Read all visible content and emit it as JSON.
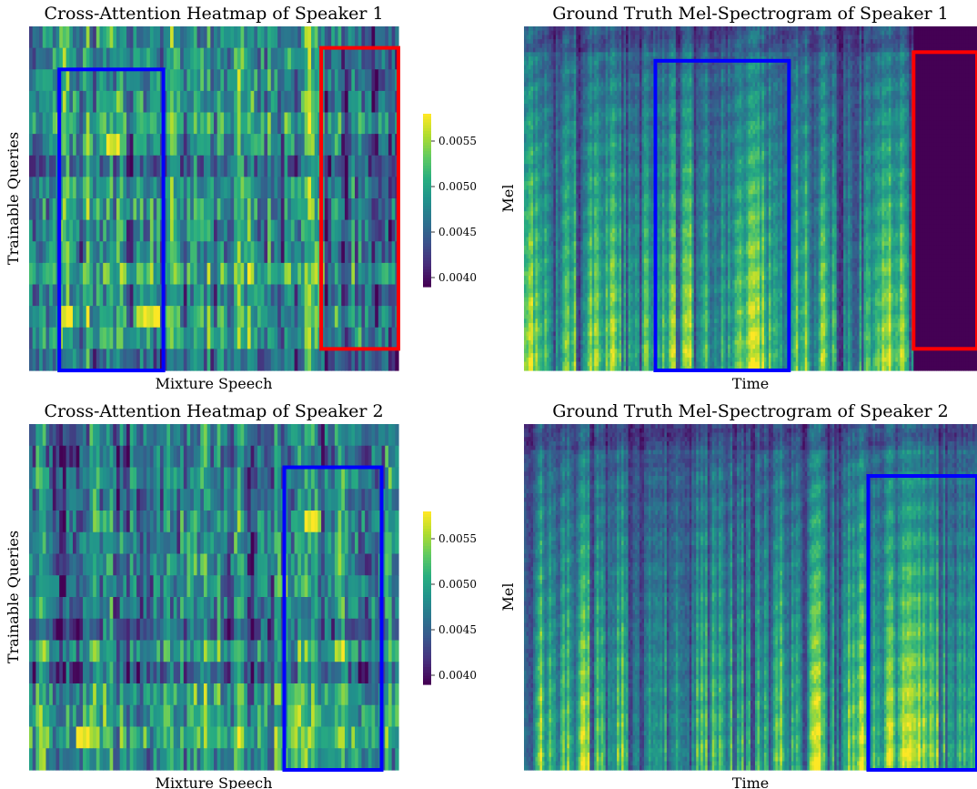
{
  "colormap": {
    "name": "viridis",
    "stops": [
      "#440154",
      "#472d7b",
      "#3b528b",
      "#2c728e",
      "#21918c",
      "#28ae80",
      "#5ec962",
      "#addc30",
      "#fde725"
    ]
  },
  "box_colors": {
    "blue": "#0000ff",
    "red": "#ff0000"
  },
  "chart_data": [
    {
      "type": "heatmap",
      "title": "Cross-Attention Heatmap of Speaker 1",
      "xlabel": "Mixture Speech",
      "ylabel": "Trainable Queries",
      "rows": 16,
      "cols": 110,
      "value_range": [
        0.0039,
        0.0058
      ],
      "colorbar": {
        "ticks": [
          0.004,
          0.0045,
          0.005,
          0.0055
        ],
        "tick_labels": [
          "0.0040",
          "0.0045",
          "0.0050",
          "0.0055"
        ]
      },
      "highlight_boxes": [
        {
          "color": "blue",
          "col_range": [
            9,
            40
          ],
          "row_range": [
            2,
            16
          ]
        },
        {
          "color": "red",
          "col_range": [
            87,
            110
          ],
          "row_range": [
            1,
            15
          ]
        }
      ]
    },
    {
      "type": "heatmap",
      "title": "Ground Truth Mel-Spectrogram of Speaker 1",
      "xlabel": "Time",
      "ylabel": "Mel",
      "rows": 80,
      "cols": 200,
      "silence_start_col": 172,
      "highlight_boxes": [
        {
          "color": "blue",
          "col_range": [
            58,
            117
          ],
          "row_range": [
            8,
            80
          ]
        },
        {
          "color": "red",
          "col_range": [
            172,
            200
          ],
          "row_range": [
            6,
            75
          ]
        }
      ]
    },
    {
      "type": "heatmap",
      "title": "Cross-Attention Heatmap of Speaker 2",
      "xlabel": "Mixture Speech",
      "ylabel": "Trainable Queries",
      "rows": 16,
      "cols": 110,
      "value_range": [
        0.0039,
        0.0058
      ],
      "colorbar": {
        "ticks": [
          0.004,
          0.0045,
          0.005,
          0.0055
        ],
        "tick_labels": [
          "0.0040",
          "0.0045",
          "0.0050",
          "0.0055"
        ]
      },
      "highlight_boxes": [
        {
          "color": "blue",
          "col_range": [
            76,
            105
          ],
          "row_range": [
            2,
            16
          ]
        }
      ]
    },
    {
      "type": "heatmap",
      "title": "Ground Truth Mel-Spectrogram of Speaker 2",
      "xlabel": "Time",
      "ylabel": "Mel",
      "rows": 80,
      "cols": 200,
      "highlight_boxes": [
        {
          "color": "blue",
          "col_range": [
            152,
            200
          ],
          "row_range": [
            12,
            80
          ]
        }
      ]
    }
  ]
}
